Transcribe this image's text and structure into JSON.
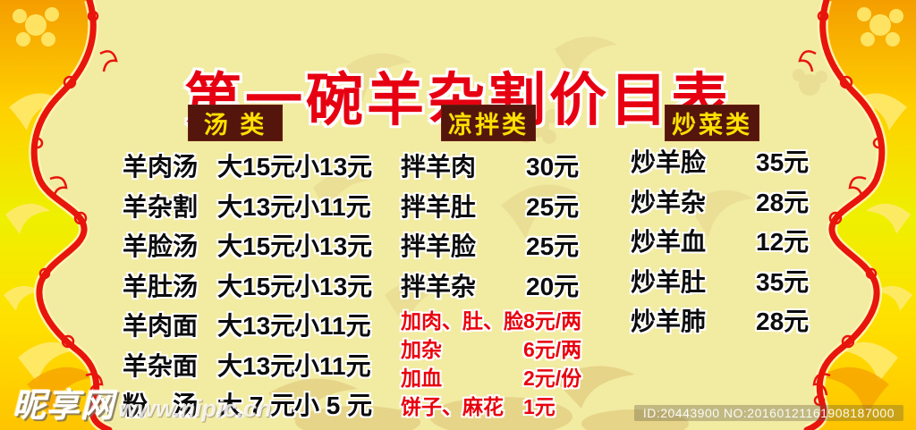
{
  "title": "第一碗羊杂割价目表",
  "colors": {
    "background": "#F2EBA2",
    "title_red": "#E60012",
    "header_bg": "#54150D",
    "header_text": "#FFE000",
    "item_text": "#0c0c0c",
    "highlight_red": "#E8000D",
    "frame_gold_top": "#F49E00",
    "frame_gold_mid": "#EEF000",
    "border_red": "#E8150C"
  },
  "sections": [
    {
      "header": "汤 类",
      "items": [
        {
          "name": "羊肉汤",
          "big": "大15元",
          "small": "小13元"
        },
        {
          "name": "羊杂割",
          "big": "大13元",
          "small": "小11元"
        },
        {
          "name": "羊脸汤",
          "big": "大15元",
          "small": "小13元"
        },
        {
          "name": "羊肚汤",
          "big": "大15元",
          "small": "小13元"
        },
        {
          "name": "羊肉面",
          "big": "大13元",
          "small": "小11元"
        },
        {
          "name": "羊杂面",
          "big": "大13元",
          "small": "小11元"
        },
        {
          "name": "粉　汤",
          "big": "大 7 元",
          "small": "小 5 元"
        }
      ]
    },
    {
      "header": "凉拌类",
      "items": [
        {
          "name": "拌羊肉",
          "price": "30元"
        },
        {
          "name": "拌羊肚",
          "price": "25元"
        },
        {
          "name": "拌羊脸",
          "price": "25元"
        },
        {
          "name": "拌羊杂",
          "price": "20元"
        },
        {
          "name": "加肉、肚、脸",
          "price": "8元/两",
          "highlight": true
        },
        {
          "name": "加杂",
          "price": "6元/两",
          "highlight": true
        },
        {
          "name": "加血",
          "price": "2元/份",
          "highlight": true
        },
        {
          "name": "饼子、麻花",
          "price": "1元",
          "highlight": true
        }
      ]
    },
    {
      "header": "炒菜类",
      "items": [
        {
          "name": "炒羊脸",
          "price": "35元"
        },
        {
          "name": "炒羊杂",
          "price": "28元"
        },
        {
          "name": "炒羊血",
          "price": "12元"
        },
        {
          "name": "炒羊肚",
          "price": "35元"
        },
        {
          "name": "炒羊肺",
          "price": "28元"
        }
      ]
    }
  ],
  "watermark": {
    "site_name": "昵享网",
    "site_url": "www.nipic.cn"
  },
  "footer_id": "ID:20443900 NO:20160121161908187000"
}
